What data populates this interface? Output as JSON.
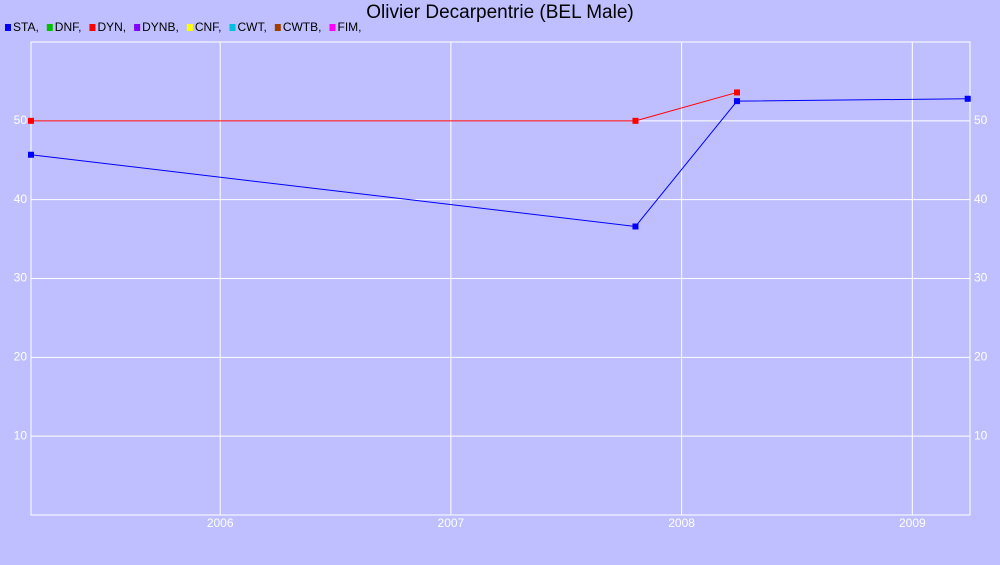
{
  "chart_data": {
    "type": "line",
    "title": "Olivier Decarpentrie (BEL Male)",
    "xlim": [
      2005.18,
      2009.25
    ],
    "xticks": [
      2006,
      2007,
      2008,
      2009
    ],
    "ylim": [
      0,
      60
    ],
    "yticks": [
      10,
      20,
      30,
      40,
      50
    ],
    "grid": true,
    "series": [
      {
        "name": "STA,",
        "color": "#0000ff",
        "x": [
          2005.18,
          2007.8,
          2008.24,
          2009.24
        ],
        "values": [
          45.7,
          36.6,
          52.5,
          52.8
        ]
      },
      {
        "name": "DNF,",
        "color": "#00c000",
        "x": [],
        "values": []
      },
      {
        "name": "DYN,",
        "color": "#ff0000",
        "x": [
          2005.18,
          2007.8,
          2008.24
        ],
        "values": [
          50,
          50,
          53.6
        ]
      },
      {
        "name": "DYNB,",
        "color": "#8000ff",
        "x": [],
        "values": []
      },
      {
        "name": "CNF,",
        "color": "#ffff00",
        "x": [],
        "values": []
      },
      {
        "name": "CWT,",
        "color": "#00c0e0",
        "x": [],
        "values": []
      },
      {
        "name": "CWTB,",
        "color": "#a04000",
        "x": [],
        "values": []
      },
      {
        "name": "FIM,",
        "color": "#ff00ff",
        "x": [],
        "values": []
      }
    ]
  }
}
